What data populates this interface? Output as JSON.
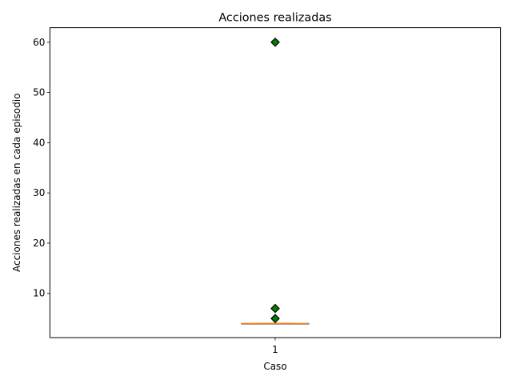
{
  "chart_data": {
    "type": "boxplot",
    "title": "Acciones realizadas",
    "xlabel": "Caso",
    "ylabel": "Acciones realizadas en cada episodio",
    "ylim": [
      1.2,
      62.9
    ],
    "yticks": [
      10,
      20,
      30,
      40,
      50,
      60
    ],
    "categories": [
      "1"
    ],
    "boxes": [
      {
        "category": "1",
        "q1": 4,
        "median": 4,
        "q3": 4,
        "whisker_low": 4,
        "whisker_high": 4,
        "fliers": [
          5,
          7,
          60
        ]
      }
    ],
    "grid": false,
    "colors": {
      "median": "#ff7f0e",
      "flier_fill": "#008000",
      "flier_edge": "#000000",
      "box": "#000000"
    }
  }
}
